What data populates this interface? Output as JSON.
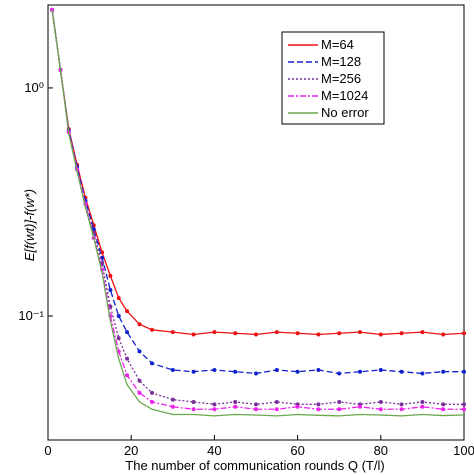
{
  "chart_data": {
    "type": "line",
    "xlabel": "The number  of communication rounds  Q (T/l)",
    "ylabel": "E[f(wt)]-f(w*)",
    "log_y": true,
    "legend": "upper right",
    "x": [
      1,
      3,
      5,
      7,
      9,
      11,
      13,
      15,
      17,
      19,
      22,
      25,
      30,
      35,
      40,
      45,
      50,
      55,
      60,
      65,
      70,
      75,
      80,
      85,
      90,
      95,
      100
    ],
    "xlim": [
      0,
      100
    ],
    "xticks": [
      0,
      20,
      40,
      60,
      80,
      100
    ],
    "ylim": [
      0.0286,
      2.31
    ],
    "yticks": [
      {
        "value": 0.1,
        "label": "10⁻¹"
      },
      {
        "value": 1,
        "label": "10⁰"
      }
    ],
    "series": [
      {
        "name": "M=64",
        "color": "#ee1111",
        "linestyle": "solid",
        "values": [
          2.2,
          1.2,
          0.66,
          0.46,
          0.33,
          0.25,
          0.19,
          0.15,
          0.12,
          0.105,
          0.092,
          0.087,
          0.085,
          0.083,
          0.085,
          0.084,
          0.083,
          0.085,
          0.084,
          0.083,
          0.084,
          0.085,
          0.083,
          0.084,
          0.085,
          0.083,
          0.084
        ]
      },
      {
        "name": "M=128",
        "color": "#1122cc",
        "linestyle": "dash",
        "values": [
          2.2,
          1.2,
          0.65,
          0.45,
          0.32,
          0.24,
          0.18,
          0.13,
          0.1,
          0.085,
          0.07,
          0.062,
          0.058,
          0.057,
          0.058,
          0.057,
          0.056,
          0.058,
          0.057,
          0.058,
          0.056,
          0.057,
          0.058,
          0.057,
          0.056,
          0.057,
          0.057
        ]
      },
      {
        "name": "M=256",
        "color": "#7a2e9a",
        "linestyle": "dot",
        "values": [
          2.2,
          1.2,
          0.64,
          0.44,
          0.31,
          0.23,
          0.17,
          0.11,
          0.08,
          0.065,
          0.052,
          0.046,
          0.043,
          0.042,
          0.041,
          0.042,
          0.041,
          0.042,
          0.041,
          0.041,
          0.042,
          0.041,
          0.042,
          0.041,
          0.042,
          0.041,
          0.041
        ]
      },
      {
        "name": "M=1024",
        "color": "#ee22ee",
        "linestyle": "dashdot",
        "values": [
          2.2,
          1.2,
          0.64,
          0.44,
          0.31,
          0.22,
          0.16,
          0.1,
          0.07,
          0.055,
          0.046,
          0.042,
          0.04,
          0.039,
          0.039,
          0.04,
          0.039,
          0.039,
          0.04,
          0.039,
          0.039,
          0.04,
          0.039,
          0.039,
          0.04,
          0.039,
          0.039
        ]
      },
      {
        "name": "No error",
        "color": "#6aa84f",
        "linestyle": "solid",
        "values": [
          2.2,
          1.2,
          0.63,
          0.43,
          0.3,
          0.22,
          0.155,
          0.095,
          0.065,
          0.05,
          0.042,
          0.039,
          0.037,
          0.037,
          0.0365,
          0.037,
          0.0368,
          0.0365,
          0.037,
          0.0367,
          0.0365,
          0.037,
          0.0368,
          0.0365,
          0.037,
          0.0366,
          0.0368
        ]
      }
    ]
  }
}
